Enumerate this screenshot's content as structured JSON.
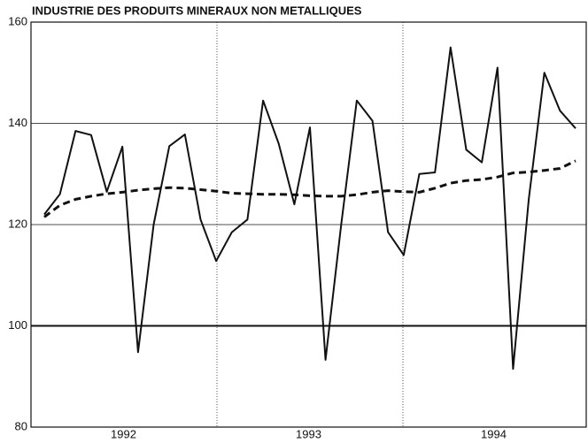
{
  "chart_data": {
    "type": "line",
    "title": "INDUSTRIE DES PRODUITS MINERAUX NON METALLIQUES",
    "categories": [
      null,
      null,
      null,
      null,
      null,
      null,
      null,
      null,
      null,
      null,
      null,
      null,
      null,
      null,
      null,
      null,
      null,
      null,
      null,
      null,
      null,
      null,
      null,
      null,
      null,
      null,
      null,
      null,
      null,
      null,
      null,
      null,
      null,
      null,
      null
    ],
    "year_labels": [
      "1992",
      "1993",
      "1994"
    ],
    "series": [
      {
        "color": "#111111",
        "style": "solid",
        "values": [
          122,
          126,
          138.5,
          137.7,
          126.5,
          135.4,
          94.8,
          120,
          135.5,
          137.8,
          121,
          112.8,
          118.5,
          121,
          144.5,
          136,
          124,
          139.2,
          93.3,
          120,
          144.5,
          140.5,
          118.5,
          114,
          130,
          130.3,
          155,
          134.8,
          132.3,
          151,
          91.5,
          125,
          150,
          142.5,
          139
        ]
      },
      {
        "color": "#111111",
        "style": "dashed",
        "values": [
          121.5,
          123.8,
          125,
          125.6,
          126.1,
          126.4,
          126.8,
          127.1,
          127.3,
          127.2,
          126.9,
          126.6,
          126.2,
          126.1,
          126,
          126,
          125.9,
          125.7,
          125.6,
          125.6,
          125.9,
          126.4,
          126.7,
          126.5,
          126.4,
          127.2,
          128.2,
          128.7,
          128.9,
          129.4,
          130.2,
          130.4,
          130.7,
          131.1,
          132.6
        ]
      }
    ],
    "ylim": [
      80,
      160
    ],
    "yticks": [
      80,
      100,
      120,
      140,
      160
    ],
    "grid": true
  }
}
